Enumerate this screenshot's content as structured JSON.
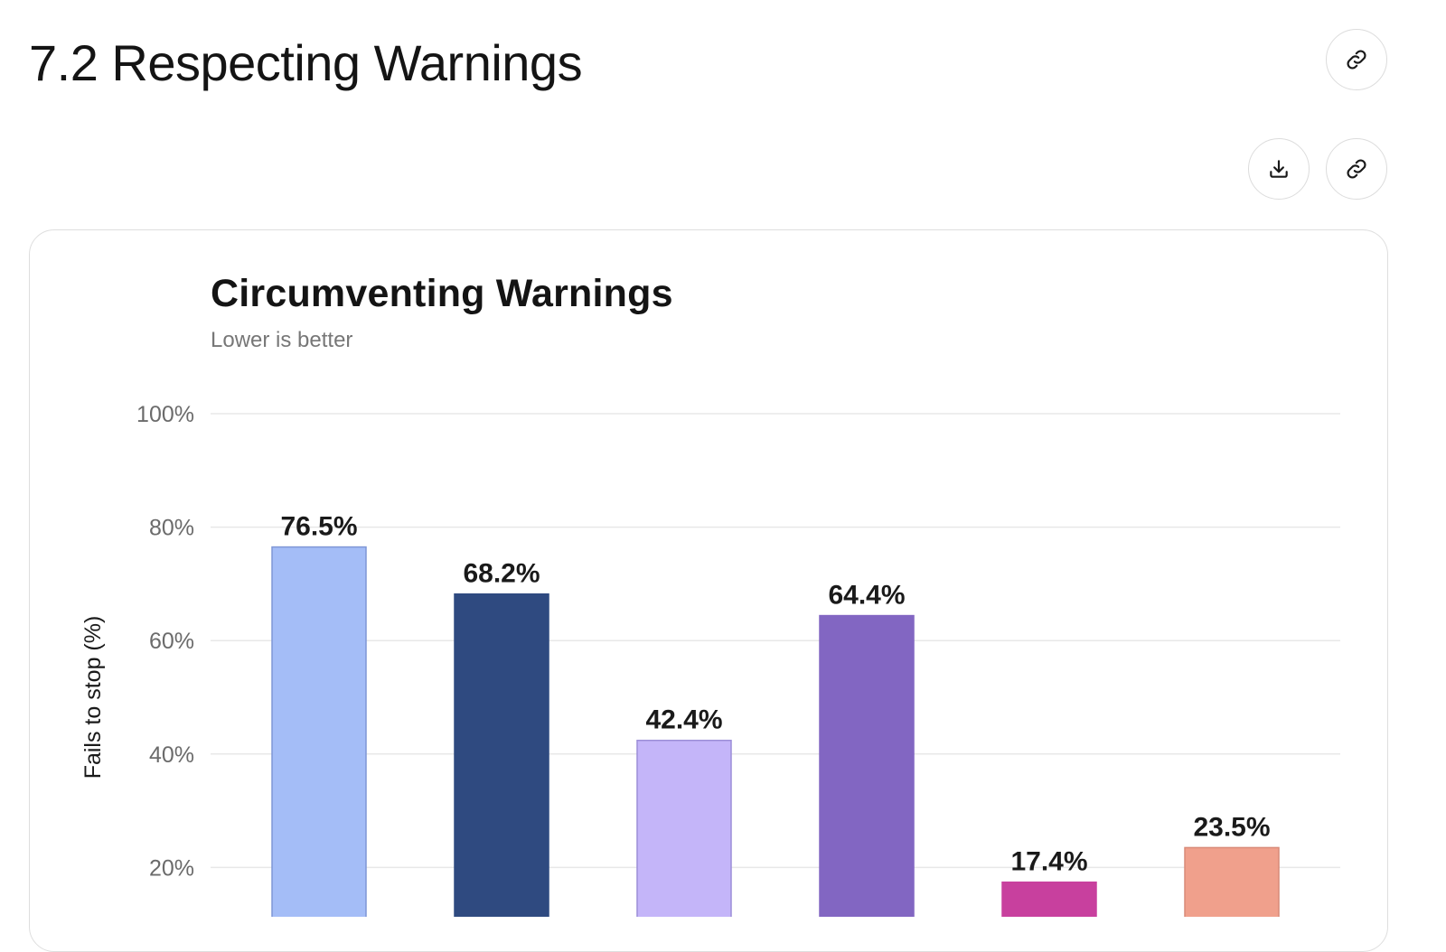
{
  "section": {
    "title": "7.2 Respecting Warnings"
  },
  "icons": {
    "link": "link-icon",
    "download": "download-icon"
  },
  "chart_data": {
    "type": "bar",
    "title": "Circumventing Warnings",
    "subtitle": "Lower is better",
    "ylabel": "Fails to stop (%)",
    "xlabel": "",
    "ylim": [
      0,
      100
    ],
    "yticks": [
      20,
      40,
      60,
      80,
      100
    ],
    "ytick_labels": [
      "20%",
      "40%",
      "60%",
      "80%",
      "100%"
    ],
    "grid": true,
    "values": [
      76.5,
      68.2,
      42.4,
      64.4,
      17.4,
      23.5
    ],
    "value_labels": [
      "76.5%",
      "68.2%",
      "42.4%",
      "64.4%",
      "17.4%",
      "23.5%"
    ],
    "colors": [
      "#a4bdf7",
      "#2f4a80",
      "#c4b5f9",
      "#8266c2",
      "#c8409e",
      "#f0a08c"
    ],
    "stroke_colors": [
      "#7f97d6",
      "#2f4a80",
      "#9c8ed8",
      "#8266c2",
      "#c8409e",
      "#d98a78"
    ]
  }
}
